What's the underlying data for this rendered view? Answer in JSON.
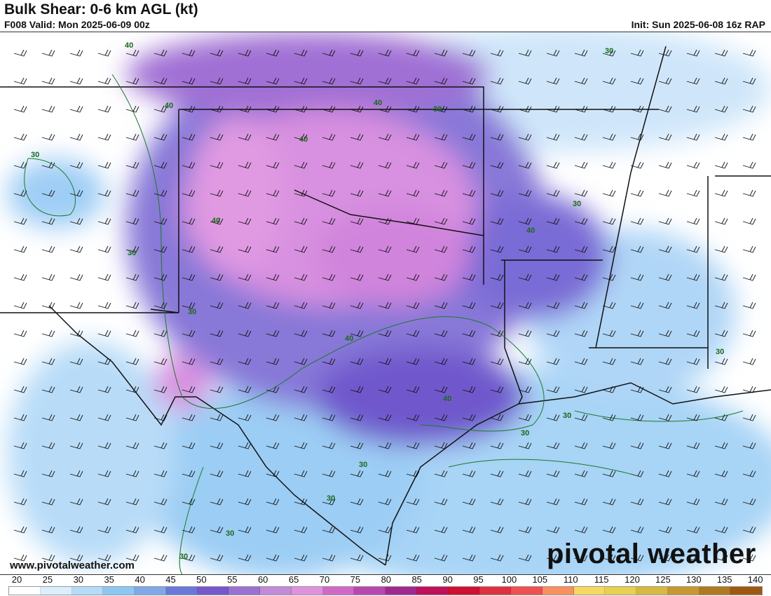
{
  "header": {
    "title": "Bulk Shear: 0-6 km AGL (kt)",
    "valid": "F008 Valid: Mon 2025-06-09 00z",
    "init": "Init: Sun 2025-06-08 16z RAP"
  },
  "footer": {
    "url": "www.pivotalweather.com",
    "logo": "pivotal weather"
  },
  "colorbar": {
    "unit": "kt",
    "ticks": [
      "20",
      "25",
      "30",
      "35",
      "40",
      "45",
      "50",
      "55",
      "60",
      "65",
      "70",
      "75",
      "80",
      "85",
      "90",
      "95",
      "100",
      "105",
      "110",
      "115",
      "120",
      "125",
      "130",
      "135",
      "140"
    ],
    "colors": [
      "#ffffff",
      "#dbeefc",
      "#b4dcf8",
      "#8dc8f4",
      "#7fa8e8",
      "#6a78da",
      "#7658cc",
      "#9a70d0",
      "#c28ad8",
      "#e090dc",
      "#d068c8",
      "#b848b0",
      "#a02890",
      "#c0105a",
      "#d01030",
      "#e03040",
      "#f05050",
      "#f89060",
      "#f8d860",
      "#e8d050",
      "#d8b840",
      "#c89830",
      "#b07820",
      "#a05810"
    ]
  },
  "contour_labels": [
    "40",
    "40",
    "30",
    "40",
    "30",
    "30",
    "40",
    "30",
    "40",
    "30",
    "30",
    "40",
    "40",
    "40",
    "30",
    "30",
    "30",
    "30",
    "30",
    "30",
    "30"
  ]
}
